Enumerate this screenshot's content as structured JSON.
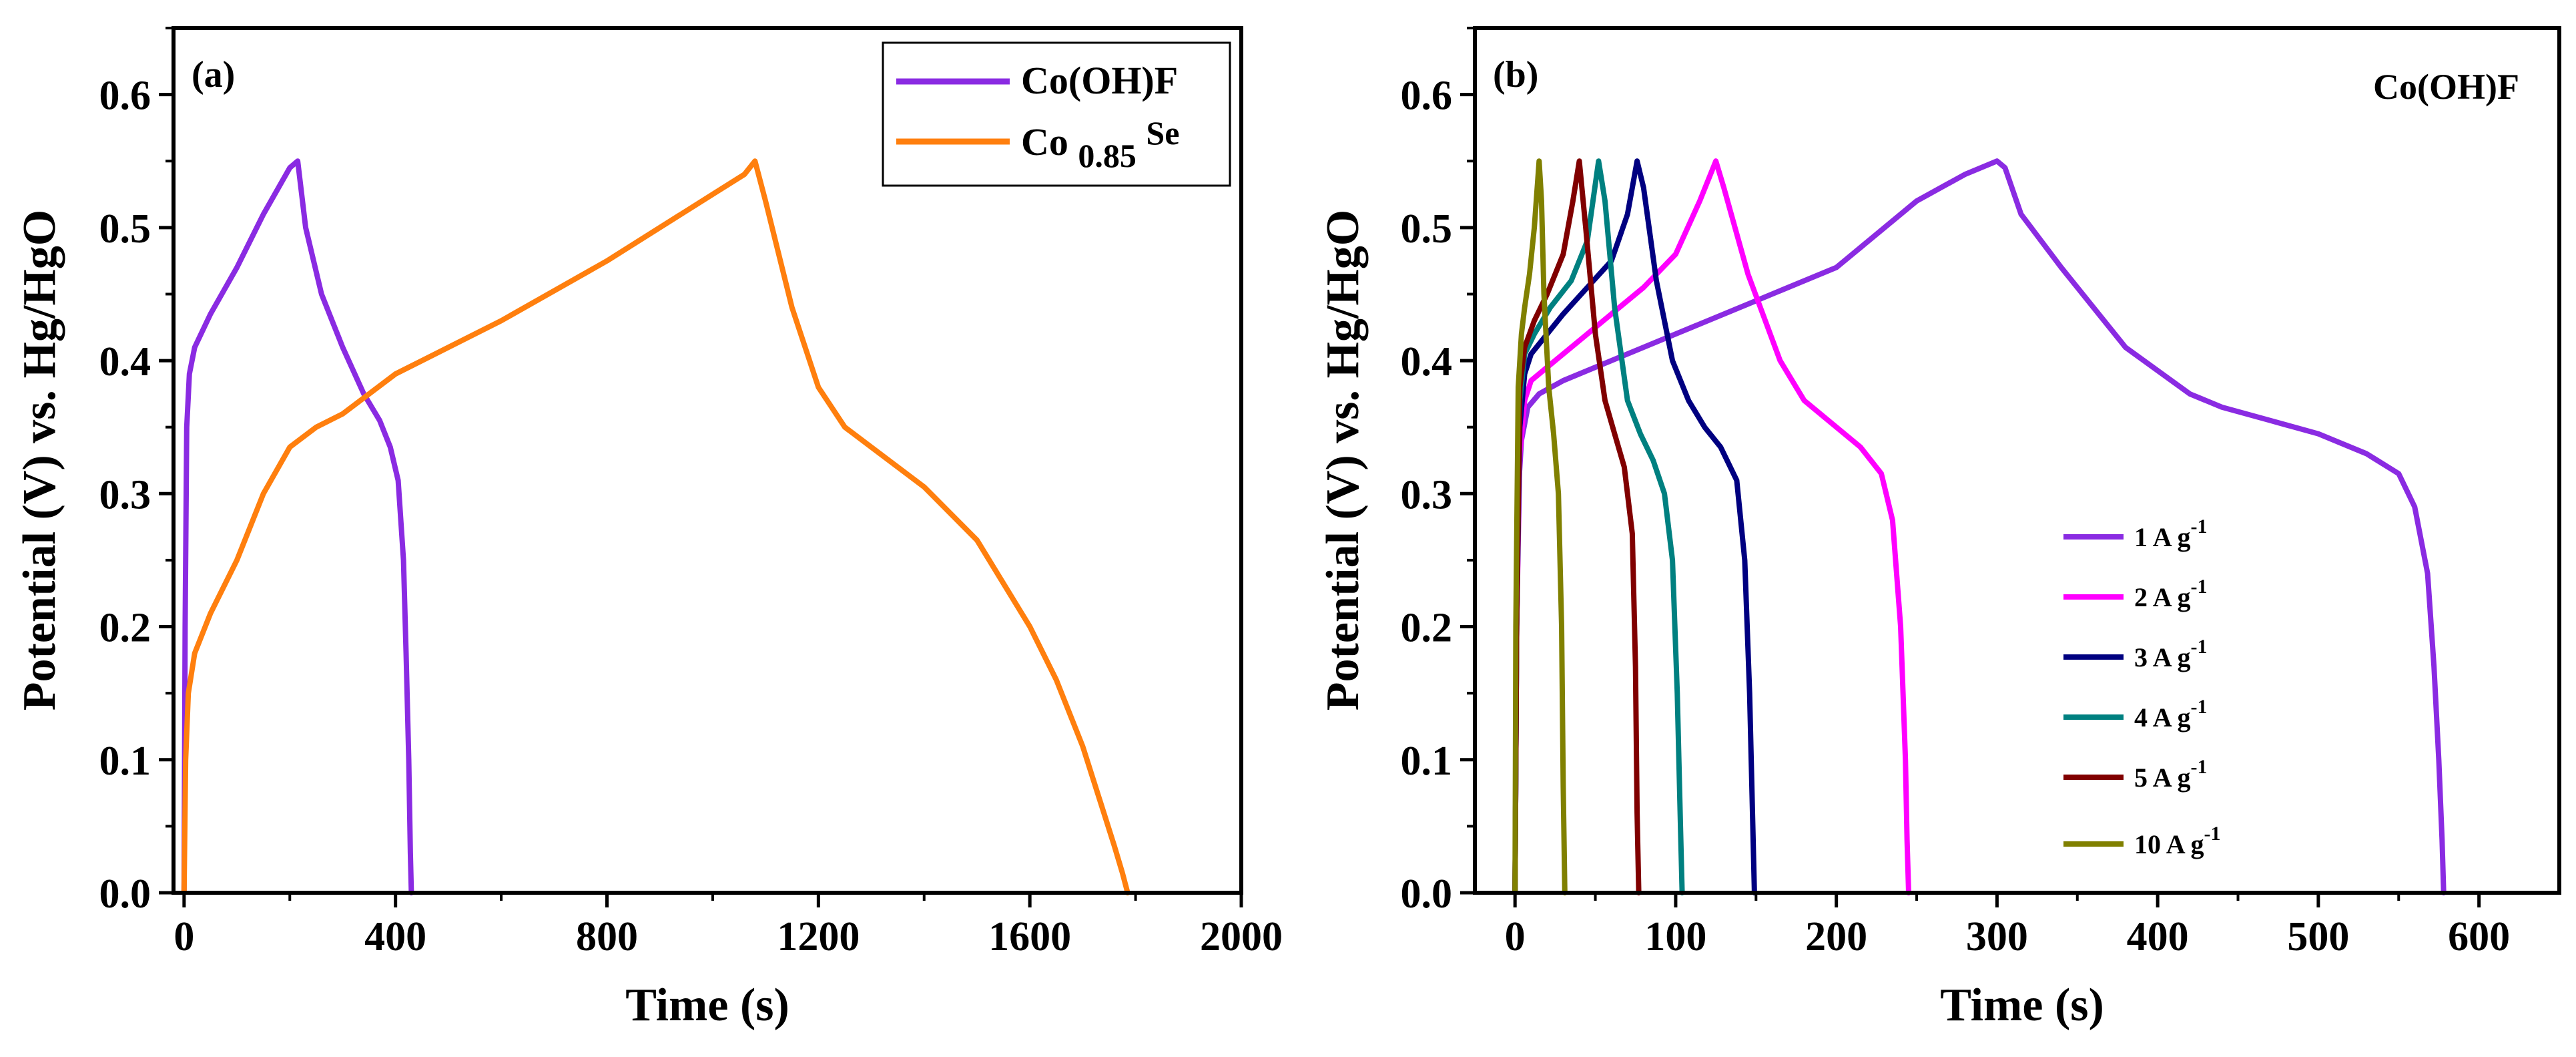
{
  "chart_data": [
    {
      "type": "line",
      "panel_label": "(a)",
      "xlabel": "Time (s)",
      "ylabel": "Potential (V) vs. Hg/HgO",
      "xlim": [
        -20,
        2000
      ],
      "ylim": [
        0,
        0.65
      ],
      "xticks": [
        "0",
        "400",
        "800",
        "1200",
        "1600",
        "2000"
      ],
      "yticks": [
        "0.0",
        "0.1",
        "0.2",
        "0.3",
        "0.4",
        "0.5",
        "0.6"
      ],
      "legend_position": "top-right",
      "series": [
        {
          "name": "Co(OH)F",
          "color": "#8a2be2",
          "x": [
            0,
            2,
            5,
            10,
            20,
            50,
            100,
            150,
            200,
            215,
            230,
            260,
            300,
            340,
            370,
            390,
            405,
            415,
            420,
            425,
            428,
            430
          ],
          "y": [
            0.0,
            0.2,
            0.35,
            0.39,
            0.41,
            0.435,
            0.47,
            0.51,
            0.545,
            0.55,
            0.5,
            0.45,
            0.41,
            0.375,
            0.355,
            0.335,
            0.31,
            0.25,
            0.18,
            0.1,
            0.03,
            0.0
          ]
        },
        {
          "name": "Co0.85Se",
          "name_parts": [
            "Co",
            "0.85",
            "Se"
          ],
          "color": "#ff7f0e",
          "x": [
            0,
            3,
            8,
            20,
            50,
            100,
            150,
            200,
            250,
            300,
            400,
            600,
            800,
            1000,
            1060,
            1080,
            1100,
            1150,
            1200,
            1250,
            1300,
            1400,
            1500,
            1600,
            1650,
            1700,
            1740,
            1760,
            1775,
            1785
          ],
          "y": [
            0.0,
            0.1,
            0.15,
            0.18,
            0.21,
            0.25,
            0.3,
            0.335,
            0.35,
            0.36,
            0.39,
            0.43,
            0.475,
            0.525,
            0.54,
            0.55,
            0.52,
            0.44,
            0.38,
            0.35,
            0.335,
            0.305,
            0.265,
            0.2,
            0.16,
            0.11,
            0.06,
            0.035,
            0.015,
            0.0
          ]
        }
      ]
    },
    {
      "type": "line",
      "panel_label": "(b)",
      "corner_label": "Co(OH)F",
      "xlabel": "Time (s)",
      "ylabel": "Potential (V) vs. Hg/HgO",
      "xlim": [
        -25,
        650
      ],
      "ylim": [
        0,
        0.65
      ],
      "xticks": [
        "0",
        "100",
        "200",
        "300",
        "400",
        "500",
        "600"
      ],
      "yticks": [
        "0.0",
        "0.1",
        "0.2",
        "0.3",
        "0.4",
        "0.5",
        "0.6"
      ],
      "legend_position": "lower-right",
      "series": [
        {
          "name": "1 A g-1",
          "label_base": "1 A g",
          "label_sup": "-1",
          "color": "#8a2be2",
          "x": [
            0,
            1,
            2,
            4,
            8,
            15,
            30,
            60,
            100,
            150,
            200,
            250,
            280,
            300,
            305,
            315,
            340,
            380,
            420,
            440,
            470,
            500,
            530,
            550,
            560,
            568,
            572,
            575,
            577,
            578
          ],
          "y": [
            0.0,
            0.2,
            0.3,
            0.34,
            0.365,
            0.375,
            0.385,
            0.4,
            0.42,
            0.445,
            0.47,
            0.52,
            0.54,
            0.55,
            0.545,
            0.51,
            0.47,
            0.41,
            0.375,
            0.365,
            0.355,
            0.345,
            0.33,
            0.315,
            0.29,
            0.24,
            0.17,
            0.1,
            0.04,
            0.0
          ]
        },
        {
          "name": "2 A g-1",
          "label_base": "2 A g",
          "label_sup": "-1",
          "color": "#ff00ff",
          "x": [
            0,
            1,
            3,
            6,
            10,
            20,
            40,
            60,
            80,
            100,
            115,
            125,
            130,
            145,
            165,
            180,
            200,
            215,
            228,
            235,
            240,
            243,
            244,
            245
          ],
          "y": [
            0.0,
            0.2,
            0.33,
            0.37,
            0.385,
            0.395,
            0.415,
            0.435,
            0.455,
            0.48,
            0.52,
            0.55,
            0.53,
            0.465,
            0.4,
            0.37,
            0.35,
            0.335,
            0.315,
            0.28,
            0.2,
            0.1,
            0.04,
            0.0
          ]
        },
        {
          "name": "3 A g-1",
          "label_base": "3 A g",
          "label_sup": "-1",
          "color": "#000080",
          "x": [
            0,
            1,
            3,
            6,
            10,
            20,
            30,
            45,
            60,
            70,
            76,
            80,
            88,
            98,
            108,
            118,
            128,
            138,
            143,
            146,
            148,
            149
          ],
          "y": [
            0.0,
            0.2,
            0.35,
            0.39,
            0.405,
            0.42,
            0.435,
            0.455,
            0.475,
            0.51,
            0.55,
            0.53,
            0.46,
            0.4,
            0.37,
            0.35,
            0.335,
            0.31,
            0.25,
            0.15,
            0.05,
            0.0
          ]
        },
        {
          "name": "4 A g-1",
          "label_base": "4 A g",
          "label_sup": "-1",
          "color": "#008080",
          "x": [
            0,
            1,
            3,
            6,
            12,
            22,
            35,
            45,
            52,
            56,
            62,
            70,
            78,
            86,
            93,
            98,
            101,
            103,
            104
          ],
          "y": [
            0.0,
            0.2,
            0.37,
            0.405,
            0.42,
            0.44,
            0.46,
            0.49,
            0.55,
            0.52,
            0.44,
            0.37,
            0.345,
            0.325,
            0.3,
            0.25,
            0.15,
            0.05,
            0.0
          ]
        },
        {
          "name": "5 A g-1",
          "label_base": "5 A g",
          "label_sup": "-1",
          "color": "#800000",
          "x": [
            0,
            1,
            3,
            6,
            12,
            20,
            30,
            36,
            40,
            44,
            50,
            56,
            62,
            68,
            73,
            75,
            76,
            77
          ],
          "y": [
            0.0,
            0.2,
            0.38,
            0.41,
            0.43,
            0.45,
            0.48,
            0.52,
            0.55,
            0.5,
            0.42,
            0.37,
            0.345,
            0.32,
            0.27,
            0.17,
            0.06,
            0.0
          ]
        },
        {
          "name": "10 A g-1",
          "label_base": "10 A g",
          "label_sup": "-1",
          "color": "#808000",
          "x": [
            0,
            0.5,
            2,
            4,
            6,
            9,
            12,
            15,
            16.5,
            18,
            21,
            24,
            27,
            29,
            30,
            31
          ],
          "y": [
            0.0,
            0.2,
            0.38,
            0.42,
            0.44,
            0.465,
            0.5,
            0.55,
            0.52,
            0.45,
            0.38,
            0.345,
            0.3,
            0.2,
            0.08,
            0.0
          ]
        }
      ]
    }
  ]
}
